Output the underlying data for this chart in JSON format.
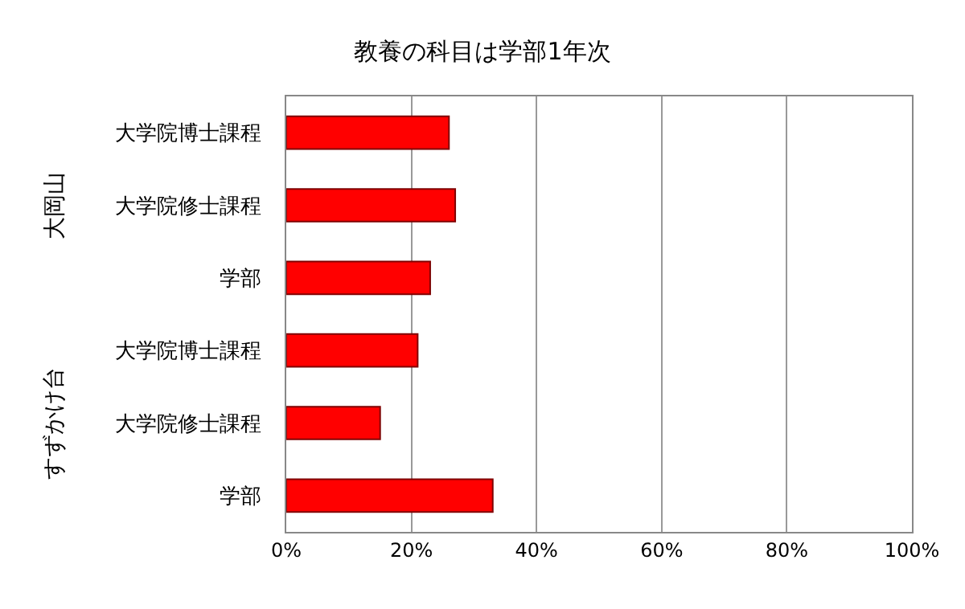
{
  "chart_data": {
    "type": "bar",
    "orientation": "horizontal",
    "title": "教養の科目は学部1年次",
    "categories": [
      "大学院博士課程",
      "大学院修士課程",
      "学部",
      "大学院博士課程",
      "大学院修士課程",
      "学部"
    ],
    "values": [
      26,
      27,
      23,
      21,
      15,
      33
    ],
    "color": "#ff0000",
    "xlim": [
      0,
      100
    ],
    "xticks": [
      {
        "value": 0,
        "label": "0%"
      },
      {
        "value": 20,
        "label": "20%"
      },
      {
        "value": 40,
        "label": "40%"
      },
      {
        "value": 60,
        "label": "60%"
      },
      {
        "value": 80,
        "label": "80%"
      },
      {
        "value": 100,
        "label": "100%"
      }
    ],
    "grid": "x",
    "annotations": [
      "大岡山",
      "すずかけ台"
    ]
  }
}
